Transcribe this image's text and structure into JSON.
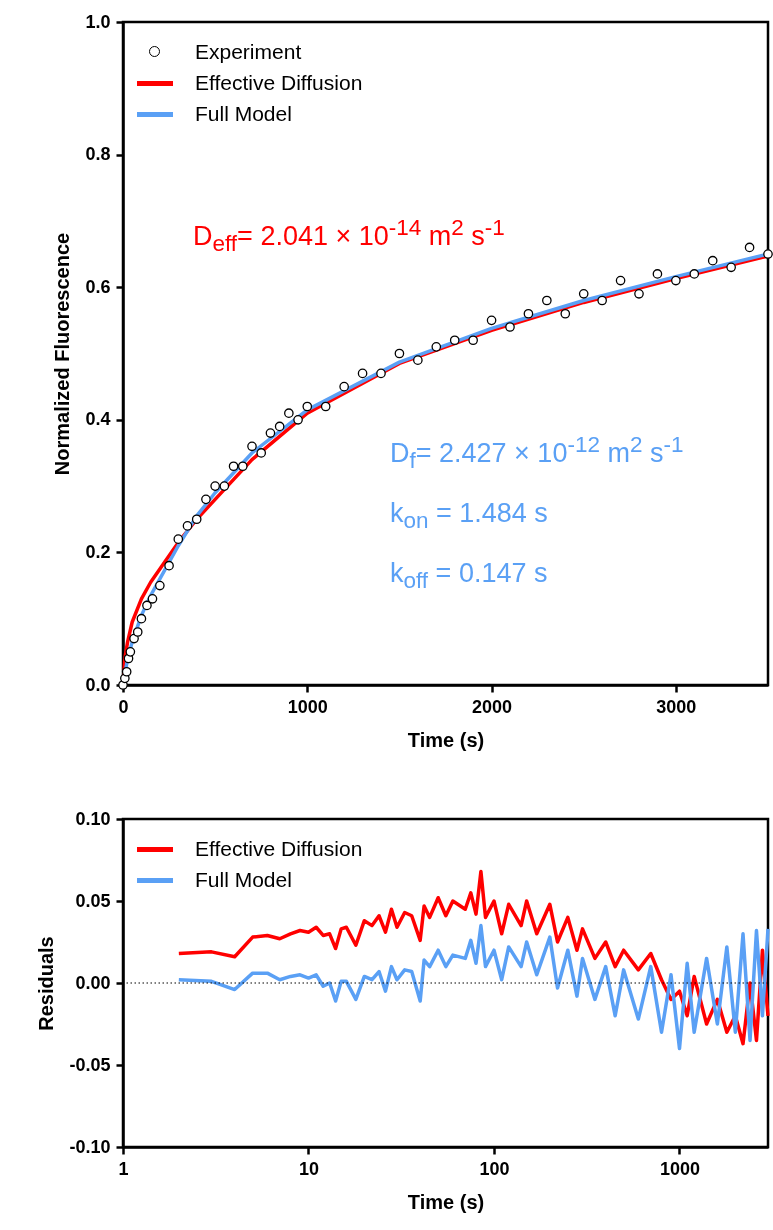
{
  "chart_data": [
    {
      "type": "scatter",
      "xlabel": "Time (s)",
      "ylabel": "Normalized Fluorescence",
      "xlim": [
        0,
        3500
      ],
      "xticks": [
        0,
        1000,
        2000,
        3000
      ],
      "ylim": [
        0,
        1
      ],
      "yticks": [
        {
          "value": 0,
          "label": "0.0"
        },
        {
          "value": 0.2,
          "label": "0.2"
        },
        {
          "value": 0.4,
          "label": "0.4"
        },
        {
          "value": 0.6,
          "label": "0.6"
        },
        {
          "value": 0.8,
          "label": "0.8"
        },
        {
          "value": 1,
          "label": "1.0"
        }
      ],
      "grid": false,
      "legend": "top left",
      "annotations": [
        "D$_{eff}$= 2.041 × 10$^{-14}$ m$^{2}$ s$^{-1}$",
        "D$_{f}$= 2.427 × 10$^{-12}$ m$^{2}$ s$^{-1}$",
        "k$_{on}$ = 1.484 s",
        "k$_{off}$ = 0.147 s"
      ],
      "series": [
        {
          "name": "Experiment",
          "marker": "circle",
          "color": "#000000",
          "x": [
            0,
            10,
            20,
            30,
            40,
            60,
            80,
            100,
            130,
            160,
            200,
            250,
            300,
            350,
            400,
            450,
            500,
            550,
            600,
            650,
            700,
            750,
            800,
            850,
            900,
            950,
            1000,
            1100,
            1200,
            1300,
            1400,
            1500,
            1600,
            1700,
            1800,
            1900,
            2000,
            2100,
            2200,
            2300,
            2400,
            2500,
            2600,
            2700,
            2800,
            2900,
            3000,
            3100,
            3200,
            3300,
            3400,
            3500
          ],
          "values": [
            0,
            0.01,
            0.02,
            0.04,
            0.05,
            0.07,
            0.08,
            0.1,
            0.12,
            0.13,
            0.15,
            0.18,
            0.22,
            0.24,
            0.25,
            0.28,
            0.3,
            0.3,
            0.33,
            0.33,
            0.36,
            0.35,
            0.38,
            0.39,
            0.41,
            0.4,
            0.42,
            0.42,
            0.45,
            0.47,
            0.47,
            0.5,
            0.49,
            0.51,
            0.52,
            0.52,
            0.55,
            0.54,
            0.56,
            0.58,
            0.56,
            0.59,
            0.58,
            0.61,
            0.59,
            0.62,
            0.61,
            0.62,
            0.64,
            0.63,
            0.66,
            0.65
          ]
        },
        {
          "name": "Effective Diffusion",
          "type": "line",
          "color": "#ff0000",
          "x": [
            0,
            10,
            25,
            50,
            100,
            150,
            200,
            300,
            400,
            500,
            700,
            1000,
            1500,
            2000,
            2500,
            3000,
            3500
          ],
          "values": [
            0,
            0.04,
            0.065,
            0.095,
            0.13,
            0.155,
            0.175,
            0.215,
            0.25,
            0.28,
            0.34,
            0.41,
            0.485,
            0.535,
            0.577,
            0.613,
            0.647
          ]
        },
        {
          "name": "Full Model",
          "type": "line",
          "color": "#5aa0f5",
          "x": [
            0,
            25,
            50,
            100,
            150,
            200,
            300,
            400,
            500,
            700,
            1000,
            1500,
            2000,
            2500,
            3000,
            3500
          ],
          "values": [
            0,
            0.04,
            0.065,
            0.105,
            0.135,
            0.16,
            0.21,
            0.255,
            0.29,
            0.35,
            0.415,
            0.487,
            0.538,
            0.58,
            0.616,
            0.65
          ]
        }
      ]
    },
    {
      "type": "line",
      "xlabel": "Time (s)",
      "ylabel": "Residuals",
      "log": "x",
      "xlim": [
        1,
        3000
      ],
      "xticks": [
        1,
        10,
        100,
        1000
      ],
      "ylim": [
        -0.1,
        0.1
      ],
      "yticks": [
        {
          "value": -0.1,
          "label": "-0.10"
        },
        {
          "value": -0.05,
          "label": "-0.05"
        },
        {
          "value": 0,
          "label": "0.00"
        },
        {
          "value": 0.05,
          "label": "0.05"
        },
        {
          "value": 0.1,
          "label": "0.10"
        }
      ],
      "grid": false,
      "legend": "top left",
      "ref_lines": [
        {
          "axis": "y",
          "value": 0,
          "color": "#000000",
          "line_style": "dotted"
        }
      ],
      "x": [
        2,
        3,
        4,
        5,
        6,
        7,
        8,
        9,
        10,
        11,
        12,
        13,
        14,
        15,
        16,
        18,
        20,
        22,
        24,
        26,
        28,
        30,
        33,
        36,
        40,
        42,
        45,
        50,
        55,
        60,
        70,
        75,
        80,
        85,
        90,
        100,
        110,
        120,
        140,
        150,
        170,
        200,
        220,
        250,
        280,
        300,
        350,
        400,
        450,
        500,
        600,
        700,
        800,
        900,
        1000,
        1100,
        1200,
        1400,
        1600,
        1800,
        2000,
        2200,
        2400,
        2600,
        2800,
        3000
      ],
      "series": [
        {
          "name": "Effective Diffusion",
          "color": "#ff0000",
          "values": [
            0.018,
            0.019,
            0.016,
            0.028,
            0.029,
            0.027,
            0.03,
            0.032,
            0.031,
            0.034,
            0.029,
            0.03,
            0.021,
            0.033,
            0.034,
            0.023,
            0.038,
            0.035,
            0.041,
            0.031,
            0.045,
            0.034,
            0.043,
            0.041,
            0.026,
            0.047,
            0.04,
            0.052,
            0.041,
            0.05,
            0.045,
            0.055,
            0.042,
            0.068,
            0.04,
            0.05,
            0.03,
            0.048,
            0.035,
            0.05,
            0.03,
            0.048,
            0.025,
            0.04,
            0.02,
            0.033,
            0.015,
            0.025,
            0.01,
            0.02,
            0.008,
            0.018,
            0.002,
            -0.01,
            -0.005,
            -0.02,
            0.004,
            -0.025,
            -0.01,
            -0.03,
            -0.02,
            -0.037,
            0,
            -0.035,
            0.02,
            -0.02
          ]
        },
        {
          "name": "Full Model",
          "color": "#5aa0f5",
          "values": [
            0.002,
            0.001,
            -0.004,
            0.006,
            0.006,
            0.002,
            0.004,
            0.005,
            0.003,
            0.005,
            -0.002,
            0,
            -0.011,
            0.001,
            0.001,
            -0.01,
            0.004,
            0.002,
            0.007,
            -0.005,
            0.01,
            0.002,
            0.008,
            0.007,
            -0.011,
            0.014,
            0.01,
            0.02,
            0.01,
            0.017,
            0.015,
            0.026,
            0.012,
            0.035,
            0.01,
            0.02,
            0.002,
            0.022,
            0.01,
            0.025,
            0.005,
            0.028,
            -0.003,
            0.02,
            -0.008,
            0.015,
            -0.01,
            0.01,
            -0.02,
            0.008,
            -0.022,
            0.01,
            -0.03,
            0.005,
            -0.04,
            0.012,
            -0.03,
            0.015,
            -0.025,
            0.022,
            -0.03,
            0.03,
            -0.035,
            0.032,
            -0.02,
            0.033
          ]
        }
      ]
    }
  ]
}
